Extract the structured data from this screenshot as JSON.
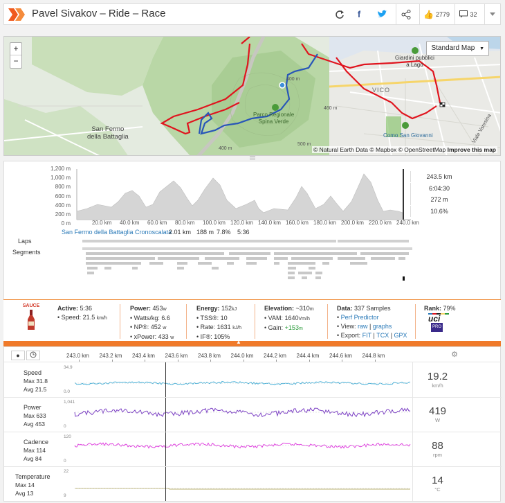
{
  "header": {
    "title": "Pavel Sivakov – Ride – Race",
    "kudos_count": "2779",
    "comments_count": "32"
  },
  "map": {
    "zoom_in": "+",
    "zoom_out": "−",
    "type_button": "Standard Map",
    "labels": {
      "san_fermo": "San Fermo\ndella Battaglia",
      "parco": "Parco Regionale\nSpina Verde",
      "giardini": "Giardini pubblici\na Lago",
      "vico": "VICO",
      "como": "Como San Giovanni",
      "via_varesina": "Viale Varesina",
      "elev1": "400 m",
      "elev2": "460 m",
      "elev3": "400 m",
      "elev4": "500 m"
    },
    "attribution_a": "© Natural Earth Data © Mapbox © OpenStreetMap ",
    "attribution_b": "Improve this map"
  },
  "elevation": {
    "y_ticks": [
      "1,200 m",
      "1,000 m",
      "800 m",
      "600 m",
      "400 m",
      "200 m",
      "0 m"
    ],
    "x_ticks": [
      "20.0 km",
      "40.0 km",
      "60.0 km",
      "80.0 km",
      "100.0 km",
      "120.0 km",
      "140.0 km",
      "160.0 km",
      "180.0 km",
      "200.0 km",
      "220.0 km",
      "240.0 km"
    ],
    "stats": [
      "243.5 km",
      "6:04:30",
      "272 m",
      "10.6%"
    ]
  },
  "rows": {
    "laps": "Laps",
    "segments": "Segments"
  },
  "segment": {
    "name": "San Fermo della Battaglia Cronoscalata",
    "distance": "2.01 km",
    "gain": "188 m",
    "grade": "7.8%",
    "time": "5:36"
  },
  "info": {
    "sauce_label": "SAUCE",
    "active_label": "Active:",
    "active_value": "5:36",
    "speed_line": "• Speed: 21.5",
    "speed_unit": "km/h",
    "power_label": "Power:",
    "power_value": "453",
    "power_unit": "w",
    "wkg_line": "• Watts/kg: 6.6",
    "np_line": "• NP®: 452",
    "np_unit": "w",
    "xp_line": "• xPower: 433",
    "xp_unit": "w",
    "energy_label": "Energy:",
    "energy_value": "152",
    "energy_unit": "kJ",
    "tss_line": "• TSS®: 10",
    "rate_line": "• Rate: 1631",
    "rate_unit": "kJ/h",
    "if_line": "• IF®: 105%",
    "elev_label": "Elevation:",
    "elev_value": "~310",
    "elev_unit": "m",
    "vam_line": "• VAM: 1640",
    "vam_unit": "Vm/h",
    "gain_label": "• Gain: ",
    "gain_value": "+153",
    "gain_unit": "m",
    "data_label": "Data:",
    "data_value": "337 Samples",
    "perf_link": "Perf Predictor",
    "view_label": "• View: ",
    "view_raw": "raw",
    "view_graphs": "graphs",
    "export_label": "• Export: ",
    "export_fit": "FIT",
    "export_tcx": "TCX",
    "export_gpx": "GPX",
    "rank_label": "Rank:",
    "rank_value": "79%",
    "uci_logo": "uci",
    "uci_sub": "PRO"
  },
  "timeseries": {
    "x_ticks": [
      "243.0 km",
      "243.2 km",
      "243.4 km",
      "243.6 km",
      "243.8 km",
      "244.0 km",
      "244.2 km",
      "244.4 km",
      "244.6 km",
      "244.8 km"
    ],
    "rows": [
      {
        "name": "Speed",
        "max": "Max 31.8",
        "avg": "Avg 21.5",
        "ytop": "34.9",
        "ybot": "0.0",
        "value": "19.2",
        "unit": "km/h",
        "color": "#46b0d8"
      },
      {
        "name": "Power",
        "max": "Max 633",
        "avg": "Avg 453",
        "ytop": "1,041",
        "ybot": "0",
        "value": "419",
        "unit": "W",
        "color": "#7b3fc4"
      },
      {
        "name": "Cadence",
        "max": "Max 114",
        "avg": "Avg 84",
        "ytop": "120",
        "ybot": "0",
        "value": "88",
        "unit": "rpm",
        "color": "#e040e0"
      },
      {
        "name": "Temperature",
        "max": "Max 14",
        "avg": "Avg 13",
        "ytop": "22",
        "ybot": "9",
        "value": "14",
        "unit": "°C",
        "color": "#b8b070"
      }
    ]
  },
  "colors": {
    "accent": "#f07a2a",
    "route_red": "#e0141e",
    "route_blue": "#2856b8",
    "link": "#2a7ab8"
  }
}
